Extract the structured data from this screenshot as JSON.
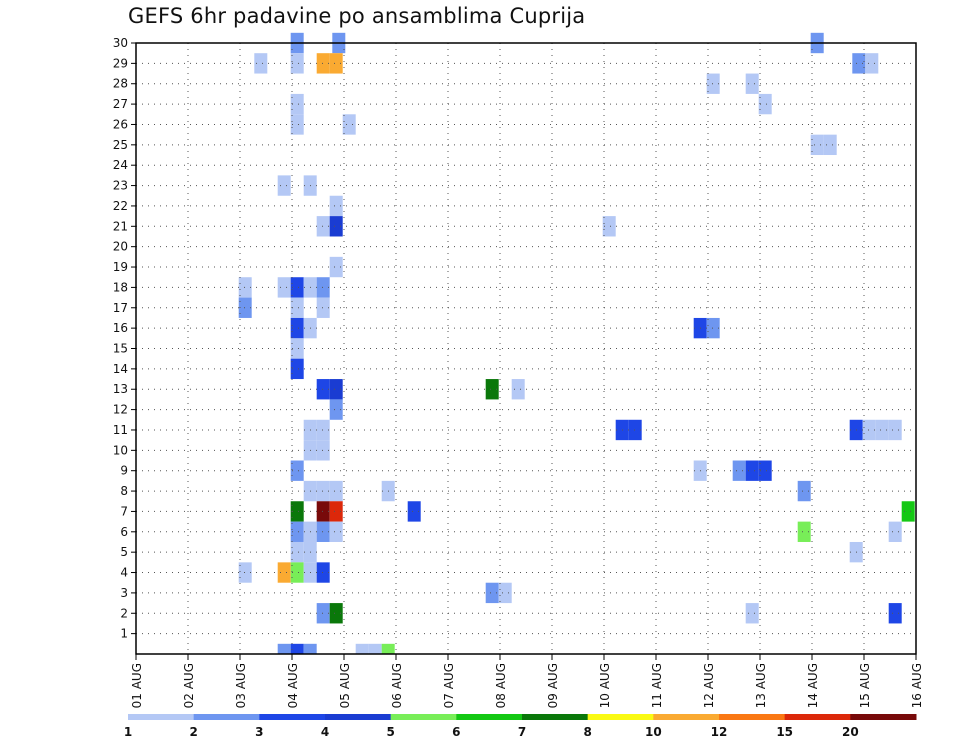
{
  "chart_data": {
    "type": "heatmap",
    "title": "GEFS 6hr padavine po ansamblima Cuprija",
    "xlabel": "",
    "ylabel": "",
    "x_tick_labels": [
      "01 AUG",
      "02 AUG",
      "03 AUG",
      "04 AUG",
      "05 AUG",
      "06 AUG",
      "07 AUG",
      "08 AUG",
      "09 AUG",
      "10 AUG",
      "11 AUG",
      "12 AUG",
      "13 AUG",
      "14 AUG",
      "15 AUG",
      "16 AUG"
    ],
    "x_range_days": [
      0,
      15
    ],
    "y_tick_labels": [
      "1",
      "2",
      "3",
      "4",
      "5",
      "6",
      "7",
      "8",
      "9",
      "10",
      "11",
      "12",
      "13",
      "14",
      "15",
      "16",
      "17",
      "18",
      "19",
      "20",
      "21",
      "22",
      "23",
      "24",
      "25",
      "26",
      "27",
      "28",
      "29",
      "30"
    ],
    "y_range": [
      0,
      30
    ],
    "grid": true,
    "legend_position": "bottom",
    "legend": {
      "labels": [
        "1",
        "2",
        "3",
        "4",
        "5",
        "6",
        "7",
        "8",
        "10",
        "12",
        "15",
        "20"
      ],
      "colors": [
        "#b4c8f5",
        "#6e96f0",
        "#1e46e6",
        "#1a3cd2",
        "#78ee58",
        "#14c814",
        "#0a780a",
        "#fafa14",
        "#faaa32",
        "#fa7814",
        "#dc280a",
        "#780a0a"
      ]
    },
    "cells": [
      {
        "d": 3.1,
        "m": 30,
        "v": 2
      },
      {
        "d": 3.9,
        "m": 30,
        "v": 2
      },
      {
        "d": 13.1,
        "m": 30,
        "v": 2
      },
      {
        "d": 2.4,
        "m": 29,
        "v": 1
      },
      {
        "d": 3.1,
        "m": 29,
        "v": 1
      },
      {
        "d": 3.6,
        "m": 29,
        "v": 10
      },
      {
        "d": 3.85,
        "m": 29,
        "v": 10
      },
      {
        "d": 13.9,
        "m": 29,
        "v": 2
      },
      {
        "d": 14.15,
        "m": 29,
        "v": 1
      },
      {
        "d": 11.1,
        "m": 28,
        "v": 1
      },
      {
        "d": 11.85,
        "m": 28,
        "v": 1
      },
      {
        "d": 3.1,
        "m": 27,
        "v": 1
      },
      {
        "d": 12.1,
        "m": 27,
        "v": 1
      },
      {
        "d": 3.1,
        "m": 26,
        "v": 1
      },
      {
        "d": 4.1,
        "m": 26,
        "v": 1
      },
      {
        "d": 13.1,
        "m": 25,
        "v": 1
      },
      {
        "d": 13.35,
        "m": 25,
        "v": 1
      },
      {
        "d": 2.85,
        "m": 23,
        "v": 1
      },
      {
        "d": 3.35,
        "m": 23,
        "v": 1
      },
      {
        "d": 3.85,
        "m": 22,
        "v": 1
      },
      {
        "d": 3.6,
        "m": 21,
        "v": 1
      },
      {
        "d": 3.85,
        "m": 21,
        "v": 4
      },
      {
        "d": 9.1,
        "m": 21,
        "v": 1
      },
      {
        "d": 3.85,
        "m": 19,
        "v": 1
      },
      {
        "d": 2.1,
        "m": 18,
        "v": 1
      },
      {
        "d": 2.85,
        "m": 18,
        "v": 1
      },
      {
        "d": 3.1,
        "m": 18,
        "v": 3
      },
      {
        "d": 3.35,
        "m": 18,
        "v": 1
      },
      {
        "d": 3.6,
        "m": 18,
        "v": 2
      },
      {
        "d": 2.1,
        "m": 17,
        "v": 2
      },
      {
        "d": 3.1,
        "m": 17,
        "v": 1
      },
      {
        "d": 3.6,
        "m": 17,
        "v": 1
      },
      {
        "d": 3.1,
        "m": 16,
        "v": 3
      },
      {
        "d": 3.35,
        "m": 16,
        "v": 1
      },
      {
        "d": 10.85,
        "m": 16,
        "v": 3
      },
      {
        "d": 11.1,
        "m": 16,
        "v": 2
      },
      {
        "d": 3.1,
        "m": 15,
        "v": 1
      },
      {
        "d": 3.1,
        "m": 14,
        "v": 3
      },
      {
        "d": 3.6,
        "m": 13,
        "v": 3
      },
      {
        "d": 3.85,
        "m": 13,
        "v": 4
      },
      {
        "d": 6.85,
        "m": 13,
        "v": 7
      },
      {
        "d": 7.35,
        "m": 13,
        "v": 1
      },
      {
        "d": 3.85,
        "m": 12,
        "v": 2
      },
      {
        "d": 3.35,
        "m": 11,
        "v": 1
      },
      {
        "d": 3.6,
        "m": 11,
        "v": 1
      },
      {
        "d": 9.35,
        "m": 11,
        "v": 3
      },
      {
        "d": 9.6,
        "m": 11,
        "v": 3
      },
      {
        "d": 13.85,
        "m": 11,
        "v": 3
      },
      {
        "d": 14.1,
        "m": 11,
        "v": 1
      },
      {
        "d": 14.35,
        "m": 11,
        "v": 1
      },
      {
        "d": 14.6,
        "m": 11,
        "v": 1
      },
      {
        "d": 3.35,
        "m": 10,
        "v": 1
      },
      {
        "d": 3.6,
        "m": 10,
        "v": 1
      },
      {
        "d": 3.1,
        "m": 9,
        "v": 2
      },
      {
        "d": 10.85,
        "m": 9,
        "v": 1
      },
      {
        "d": 11.6,
        "m": 9,
        "v": 2
      },
      {
        "d": 11.85,
        "m": 9,
        "v": 3
      },
      {
        "d": 12.1,
        "m": 9,
        "v": 3
      },
      {
        "d": 3.35,
        "m": 8,
        "v": 1
      },
      {
        "d": 3.6,
        "m": 8,
        "v": 1
      },
      {
        "d": 3.85,
        "m": 8,
        "v": 1
      },
      {
        "d": 4.85,
        "m": 8,
        "v": 1
      },
      {
        "d": 12.85,
        "m": 8,
        "v": 2
      },
      {
        "d": 3.1,
        "m": 7,
        "v": 7
      },
      {
        "d": 3.6,
        "m": 7,
        "v": 20
      },
      {
        "d": 3.85,
        "m": 7,
        "v": 15
      },
      {
        "d": 5.35,
        "m": 7,
        "v": 3
      },
      {
        "d": 14.85,
        "m": 7,
        "v": 6
      },
      {
        "d": 3.1,
        "m": 6,
        "v": 2
      },
      {
        "d": 3.35,
        "m": 6,
        "v": 1
      },
      {
        "d": 3.6,
        "m": 6,
        "v": 2
      },
      {
        "d": 3.85,
        "m": 6,
        "v": 1
      },
      {
        "d": 12.85,
        "m": 6,
        "v": 5
      },
      {
        "d": 14.6,
        "m": 6,
        "v": 1
      },
      {
        "d": 3.1,
        "m": 5,
        "v": 1
      },
      {
        "d": 3.35,
        "m": 5,
        "v": 1
      },
      {
        "d": 13.85,
        "m": 5,
        "v": 1
      },
      {
        "d": 2.1,
        "m": 4,
        "v": 1
      },
      {
        "d": 2.85,
        "m": 4,
        "v": 10
      },
      {
        "d": 3.1,
        "m": 4,
        "v": 5
      },
      {
        "d": 3.35,
        "m": 4,
        "v": 1
      },
      {
        "d": 3.6,
        "m": 4,
        "v": 3
      },
      {
        "d": 6.85,
        "m": 3,
        "v": 2
      },
      {
        "d": 7.1,
        "m": 3,
        "v": 1
      },
      {
        "d": 3.6,
        "m": 2,
        "v": 2
      },
      {
        "d": 3.85,
        "m": 2,
        "v": 7
      },
      {
        "d": 11.85,
        "m": 2,
        "v": 1
      },
      {
        "d": 14.6,
        "m": 2,
        "v": 3
      },
      {
        "d": 2.85,
        "m": 0,
        "v": 2
      },
      {
        "d": 3.1,
        "m": 0,
        "v": 3
      },
      {
        "d": 3.35,
        "m": 0,
        "v": 2
      },
      {
        "d": 4.35,
        "m": 0,
        "v": 1
      },
      {
        "d": 4.6,
        "m": 0,
        "v": 1
      },
      {
        "d": 4.85,
        "m": 0,
        "v": 5
      }
    ]
  }
}
